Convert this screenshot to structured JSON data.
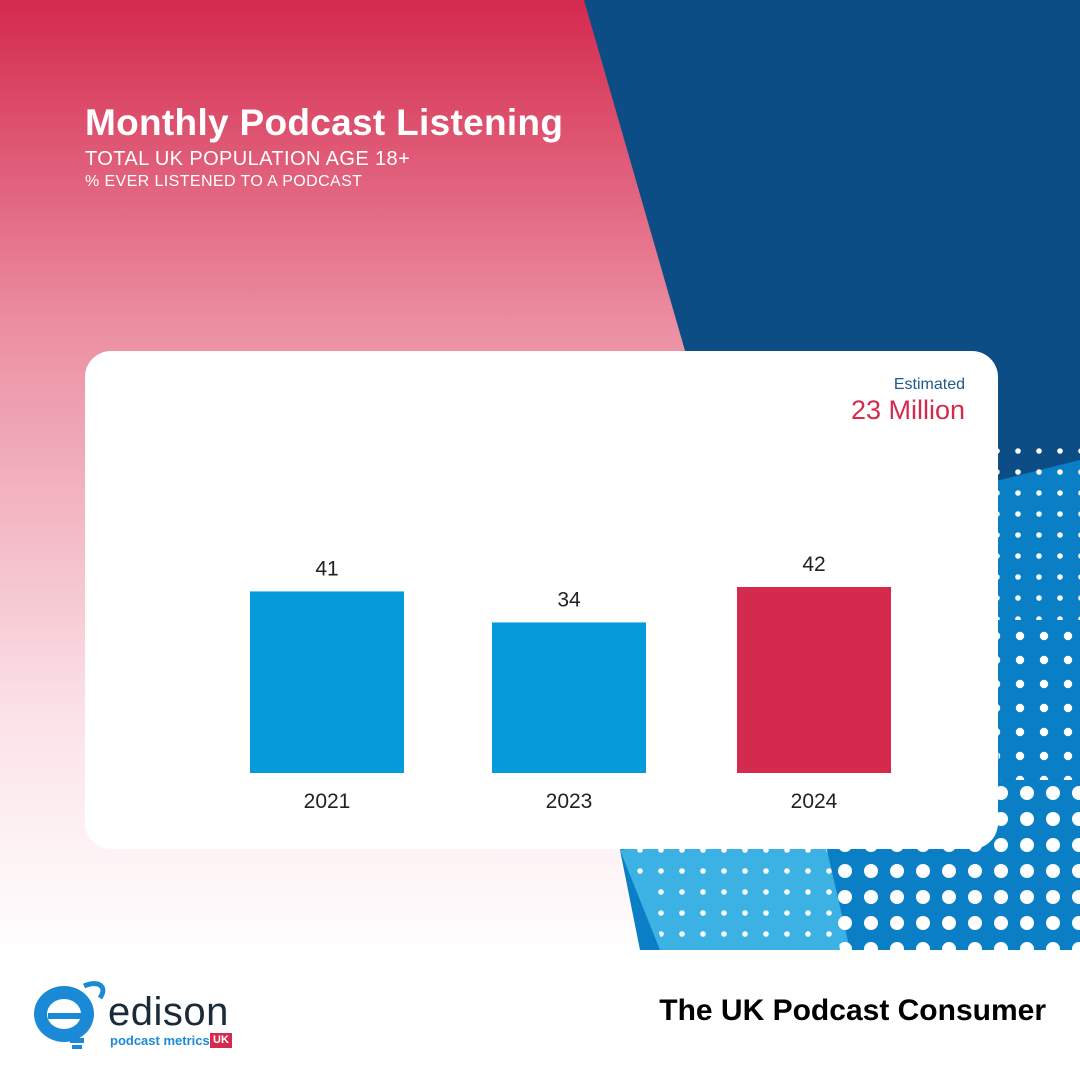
{
  "header": {
    "title": "Monthly Podcast Listening",
    "subtitle": "TOTAL UK POPULATION AGE 18+",
    "subtitle2": "% EVER LISTENED TO A PODCAST"
  },
  "estimate": {
    "label": "Estimated",
    "value": "23 Million"
  },
  "colors": {
    "accent_red": "#d42a4e",
    "bar_blue": "#059bdb",
    "navy": "#0c4d86"
  },
  "chart_data": {
    "type": "bar",
    "categories": [
      "2021",
      "2023",
      "2024"
    ],
    "values": [
      41,
      34,
      42
    ],
    "bar_colors": [
      "#059bdb",
      "#059bdb",
      "#d42a4e"
    ],
    "data_labels": [
      "41",
      "34",
      "42"
    ],
    "title": "Monthly Podcast Listening",
    "ylim": [
      0,
      42
    ],
    "grid": false,
    "legend": "none"
  },
  "brand": {
    "logo_word": "edison",
    "logo_sub": "podcast metrics",
    "logo_badge": "UK",
    "logo_icon": "edison-bulb-icon"
  },
  "footer": {
    "title": "The UK Podcast Consumer"
  }
}
